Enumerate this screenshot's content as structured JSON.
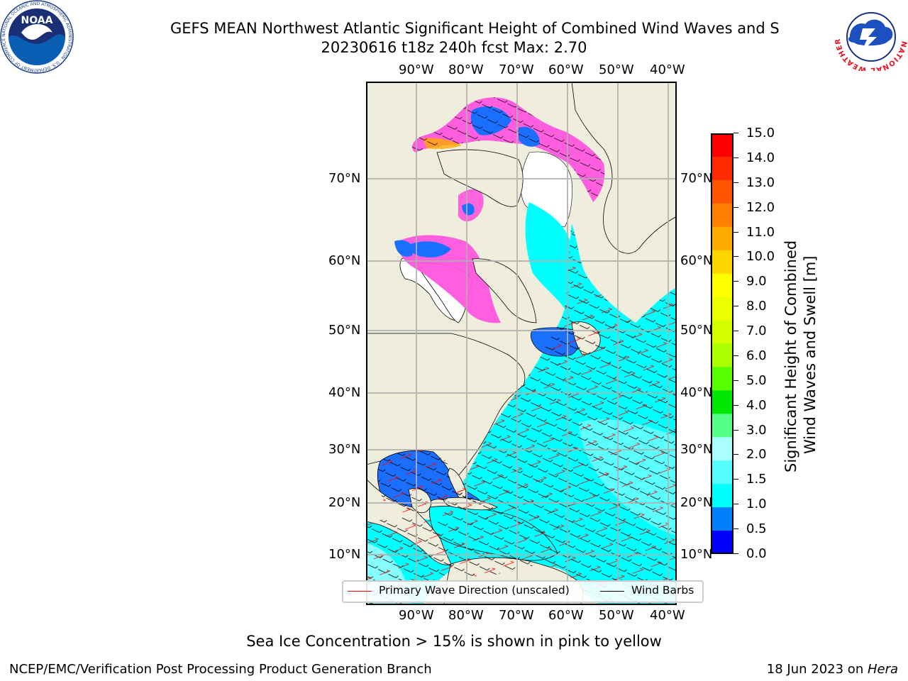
{
  "title_line1": "GEFS MEAN Northwest Atlantic Significant Height of Combined Wind Waves and S",
  "title_line2": "20230616 t18z 240h fcst   Max: 2.70",
  "map": {
    "lon_ticks": [
      "90°W",
      "80°W",
      "70°W",
      "60°W",
      "50°W",
      "40°W"
    ],
    "lat_ticks": [
      "70°N",
      "60°N",
      "50°N",
      "40°N",
      "30°N",
      "20°N",
      "10°N"
    ],
    "colors": {
      "land": "#efeedd",
      "sea_ice": "#ff55dd",
      "wave_low": "#1a6fff",
      "wave_mid": "#00ffff",
      "wave_high": "#66ffff",
      "primary_wave_direction": "#ff0000",
      "wind_barbs": "#000000"
    }
  },
  "legend": {
    "primary_wave_label": "Primary Wave Direction (unscaled)",
    "wind_barbs_label": "Wind Barbs"
  },
  "colorbar": {
    "label_line1": "Significant Height of Combined",
    "label_line2": "Wind Waves and Swell [m]",
    "ticks": [
      "15.0",
      "14.0",
      "13.0",
      "12.0",
      "11.0",
      "10.0",
      "9.0",
      "8.0",
      "7.0",
      "6.0",
      "5.0",
      "4.0",
      "3.0",
      "2.0",
      "1.5",
      "1.0",
      "0.5",
      "0.0"
    ],
    "colors_top_to_bottom": [
      "#ff0000",
      "#ff2a00",
      "#ff5500",
      "#ff8000",
      "#ffaa00",
      "#ffd500",
      "#ffff00",
      "#ebff00",
      "#d4ff00",
      "#aaff00",
      "#55ff00",
      "#00e600",
      "#55ff88",
      "#aaffff",
      "#55ffff",
      "#00ffff",
      "#0080ff",
      "#0000ff"
    ]
  },
  "caption": "Sea Ice Concentration > 15% is shown in pink to yellow",
  "footer_left": "NCEP/EMC/Verification Post Processing Product Generation Branch",
  "footer_right_date": "18 Jun 2023 on ",
  "footer_right_host": "Hera",
  "logos": {
    "noaa_text": "NOAA",
    "noaa_ring_text": "NATIONAL OCEANIC AND ATMOSPHERIC ADMINISTRATION · U.S. DEPARTMENT OF COMMERCE",
    "nws_ring_text": "NATIONAL WEATHER SERVICE"
  }
}
